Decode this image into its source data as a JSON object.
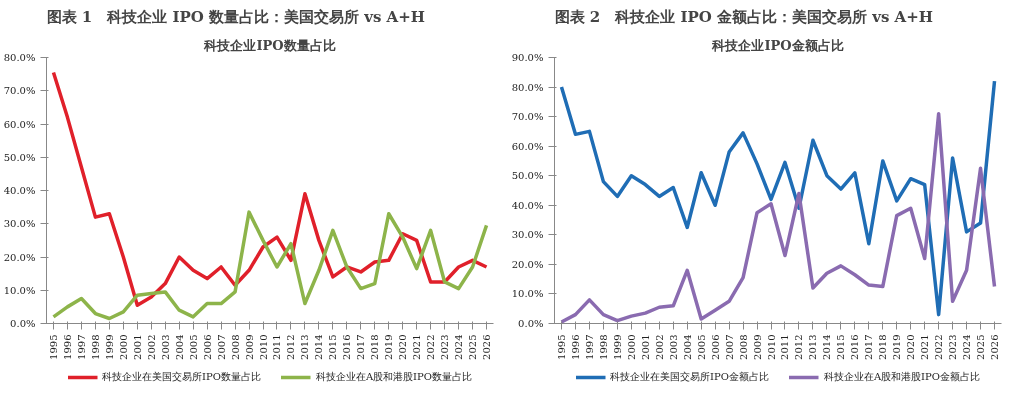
{
  "chart_data": [
    {
      "type": "line",
      "title": "图表 1　科技企业 IPO 数量占比：美国交易所 vs A+H",
      "subtitle": "科技企业IPO数量占比",
      "categories": [
        "1995",
        "1996",
        "1997",
        "1998",
        "1999",
        "2000",
        "2001",
        "2002",
        "2003",
        "2004",
        "2005",
        "2006",
        "2007",
        "2008",
        "2009",
        "2010",
        "2011",
        "2012",
        "2013",
        "2014",
        "2015",
        "2016",
        "2017",
        "2018",
        "2019",
        "2020",
        "2021",
        "2022",
        "2023",
        "2024",
        "2025",
        "2026"
      ],
      "series": [
        {
          "name": "科技企业在美国交易所IPO数量占比",
          "color": "#e0202a",
          "values": [
            75.5,
            62,
            47,
            32,
            33,
            20,
            5.5,
            8,
            12,
            20,
            16,
            13.5,
            17,
            11.5,
            16,
            23,
            26,
            19,
            39,
            25,
            14,
            17,
            15.5,
            18.5,
            19,
            27,
            25,
            12.5,
            12.5,
            17,
            19,
            17
          ]
        },
        {
          "name": "科技企业在A股和港股IPO数量占比",
          "color": "#8db44a",
          "values": [
            2,
            5,
            7.5,
            3,
            1.5,
            3.5,
            8.5,
            9,
            9.5,
            4,
            2,
            6,
            6,
            9.5,
            33.5,
            25,
            17,
            24,
            6,
            16,
            28,
            17,
            10.5,
            12,
            33,
            26,
            16.5,
            28,
            12.5,
            10.5,
            17,
            29.5
          ]
        }
      ],
      "ylim": [
        0,
        80
      ],
      "yticks": [
        {
          "value": 0,
          "label": "0.0%"
        },
        {
          "value": 10,
          "label": "10.0%"
        },
        {
          "value": 20,
          "label": "20.0%"
        },
        {
          "value": 30,
          "label": "30.0%"
        },
        {
          "value": 40,
          "label": "40.0%"
        },
        {
          "value": 50,
          "label": "50.0%"
        },
        {
          "value": 60,
          "label": "60.0%"
        },
        {
          "value": 70,
          "label": "70.0%"
        },
        {
          "value": 80,
          "label": "80.0%"
        }
      ],
      "grid": false,
      "legend": "bottom",
      "marker": "none",
      "line_style": "solid"
    },
    {
      "type": "line",
      "title": "图表 2　科技企业 IPO 金额占比：美国交易所 vs A+H",
      "subtitle": "科技企业IPO金额占比",
      "categories": [
        "1995",
        "1996",
        "1997",
        "1998",
        "1999",
        "2000",
        "2001",
        "2002",
        "2003",
        "2004",
        "2005",
        "2006",
        "2007",
        "2008",
        "2009",
        "2010",
        "2011",
        "2012",
        "2013",
        "2014",
        "2015",
        "2016",
        "2017",
        "2018",
        "2019",
        "2020",
        "2021",
        "2022",
        "2023",
        "2024",
        "2025",
        "2026"
      ],
      "series": [
        {
          "name": "科技企业在美国交易所IPO金额占比",
          "color": "#1f6db5",
          "values": [
            80,
            64,
            65,
            48,
            43,
            50,
            47,
            43,
            46,
            32.5,
            51,
            40,
            58,
            64.5,
            54,
            42,
            54.5,
            39,
            62,
            50,
            45.5,
            51,
            27,
            55,
            41.5,
            49,
            47,
            3,
            56,
            31,
            34,
            82
          ]
        },
        {
          "name": "科技企业在A股和港股IPO金额占比",
          "color": "#8a6bb0",
          "values": [
            0.5,
            3,
            8,
            3,
            1,
            2.5,
            3.5,
            5.5,
            6,
            18,
            1.5,
            4.5,
            7.5,
            15.5,
            37.5,
            40.5,
            23,
            44,
            12,
            17,
            19.5,
            16.5,
            13,
            12.5,
            36.5,
            39,
            22,
            71,
            7.5,
            18,
            52.5,
            12.5
          ]
        }
      ],
      "ylim": [
        0,
        90
      ],
      "yticks": [
        {
          "value": 0,
          "label": "0.0%"
        },
        {
          "value": 10,
          "label": "10.0%"
        },
        {
          "value": 20,
          "label": "20.0%"
        },
        {
          "value": 30,
          "label": "30.0%"
        },
        {
          "value": 40,
          "label": "40.0%"
        },
        {
          "value": 50,
          "label": "50.0%"
        },
        {
          "value": 60,
          "label": "60.0%"
        },
        {
          "value": 70,
          "label": "70.0%"
        },
        {
          "value": 80,
          "label": "80.0%"
        },
        {
          "value": 90,
          "label": "90.0%"
        }
      ],
      "grid": false,
      "legend": "bottom",
      "marker": "none",
      "line_style": "solid"
    }
  ]
}
